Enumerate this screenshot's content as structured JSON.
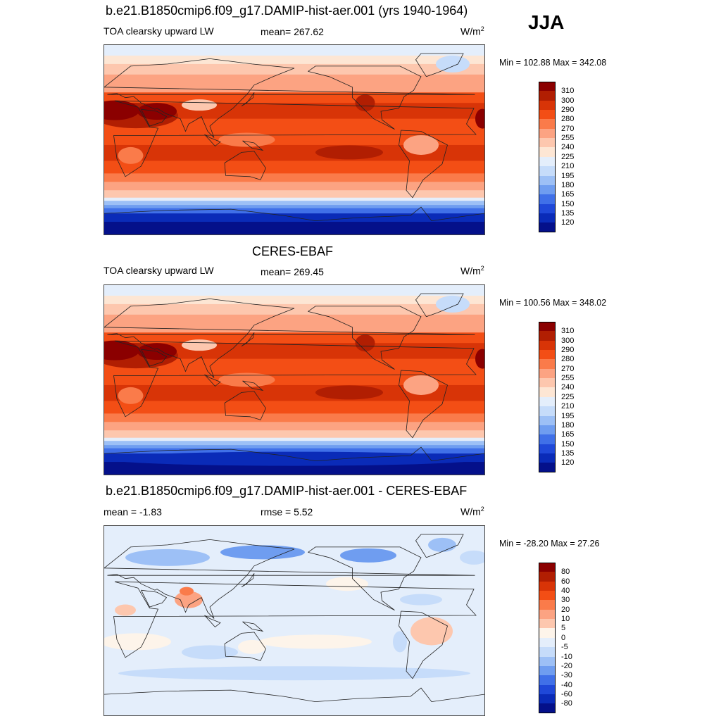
{
  "season": "JJA",
  "panels": [
    {
      "title": "b.e21.B1850cmip6.f09_g17.DAMIP-hist-aer.001 (yrs 1940-1964)",
      "left_label": "TOA clearsky upward LW",
      "center_label": "mean= 267.62",
      "units": "W/m",
      "units_sup": "2",
      "minmax": "Min = 102.88 Max = 342.08",
      "kind": "field"
    },
    {
      "title": "CERES-EBAF",
      "left_label": "TOA clearsky upward LW",
      "center_label": "mean= 269.45",
      "units": "W/m",
      "units_sup": "2",
      "minmax": "Min = 100.56 Max = 348.02",
      "kind": "field"
    },
    {
      "title": "b.e21.B1850cmip6.f09_g17.DAMIP-hist-aer.001 - CERES-EBAF",
      "left_label": "mean =  -1.83",
      "center_label": "rmse =   5.52",
      "units": "W/m",
      "units_sup": "2",
      "minmax": "Min = -28.20 Max =  27.26",
      "kind": "diff"
    }
  ],
  "colorbars": {
    "field": {
      "labels": [
        "310",
        "300",
        "290",
        "280",
        "270",
        "255",
        "240",
        "225",
        "210",
        "195",
        "180",
        "165",
        "150",
        "135",
        "120"
      ],
      "colors": [
        "#8b0000",
        "#b11e02",
        "#d83407",
        "#f34e15",
        "#fa7b4a",
        "#fca382",
        "#fdc7ae",
        "#fde6d4",
        "#e4eefb",
        "#c6dcfa",
        "#9dc0f6",
        "#6f9df0",
        "#4070e8",
        "#1f48d8",
        "#0a2bb8",
        "#04108a"
      ]
    },
    "diff": {
      "labels": [
        "80",
        "60",
        "40",
        "30",
        "20",
        "10",
        "5",
        "0",
        "-5",
        "-10",
        "-20",
        "-30",
        "-40",
        "-60",
        "-80"
      ],
      "colors": [
        "#8b0000",
        "#b11e02",
        "#d83407",
        "#f34e15",
        "#fa7b4a",
        "#fca382",
        "#fdc7ae",
        "#fdf4ea",
        "#e4eefb",
        "#c6dcfa",
        "#9dc0f6",
        "#6f9df0",
        "#4070e8",
        "#1f48d8",
        "#0a2bb8",
        "#04108a"
      ]
    }
  }
}
